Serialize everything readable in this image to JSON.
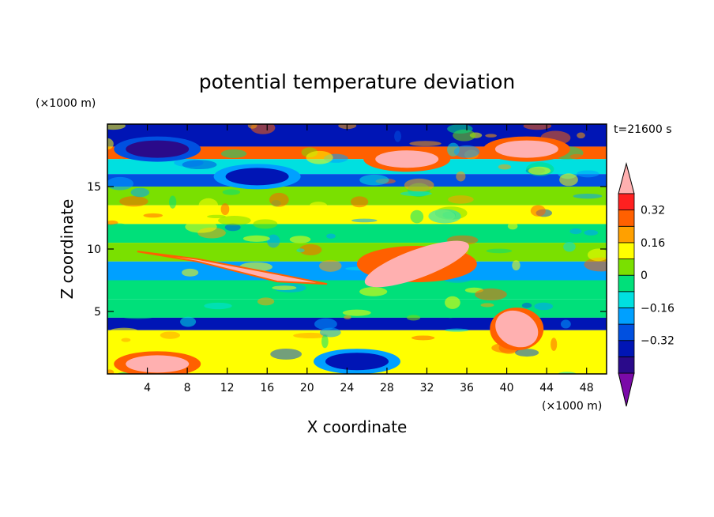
{
  "chart_data": {
    "type": "heatmap",
    "title": "potential temperature deviation",
    "xlabel": "X coordinate",
    "ylabel": "Z coordinate",
    "x_unit": "(×1000 m)",
    "y_unit": "(×1000 m)",
    "time_label": "t=21600 s",
    "xlim": [
      0,
      50
    ],
    "ylim": [
      0,
      20
    ],
    "x_ticks": [
      4,
      8,
      12,
      16,
      20,
      24,
      28,
      32,
      36,
      40,
      44,
      48
    ],
    "y_ticks": [
      5,
      10,
      15
    ],
    "colorbar": {
      "levels": [
        -0.48,
        -0.4,
        -0.32,
        -0.24,
        -0.16,
        -0.08,
        0,
        0.08,
        0.16,
        0.24,
        0.32,
        0.4
      ],
      "colors": [
        "#7a0aa8",
        "#2a0a8a",
        "#0015b5",
        "#0050e0",
        "#00a0ff",
        "#00e0e0",
        "#00e07a",
        "#7ae000",
        "#ffff00",
        "#ffa000",
        "#ff6000",
        "#ff2020",
        "#ffb0b0"
      ],
      "tick_labels": [
        "0.32",
        "0.16",
        "0",
        "−0.16",
        "−0.32"
      ],
      "tick_values": [
        0.32,
        0.16,
        0,
        -0.16,
        -0.32
      ],
      "extend": "both"
    },
    "layers": [
      {
        "z": [
          18.2,
          20
        ],
        "value": -0.4
      },
      {
        "z": [
          17.2,
          18.2
        ],
        "value": 0.24
      },
      {
        "z": [
          16.0,
          17.2
        ],
        "value": -0.16
      },
      {
        "z": [
          15.0,
          16.0
        ],
        "value": -0.32
      },
      {
        "z": [
          13.5,
          15.0
        ],
        "value": 0.04
      },
      {
        "z": [
          12.0,
          13.5
        ],
        "value": 0.08
      },
      {
        "z": [
          10.5,
          12.0
        ],
        "value": -0.04
      },
      {
        "z": [
          9.0,
          10.5
        ],
        "value": 0.0
      },
      {
        "z": [
          7.5,
          9.0
        ],
        "value": -0.24
      },
      {
        "z": [
          6.0,
          7.5
        ],
        "value": -0.08
      },
      {
        "z": [
          4.5,
          6.0
        ],
        "value": -0.06
      },
      {
        "z": [
          3.5,
          4.5
        ],
        "value": -0.36
      },
      {
        "z": [
          0,
          3.5
        ],
        "value": 0.1
      }
    ],
    "features": [
      {
        "x": 8,
        "z": 8.6,
        "value": 0.45,
        "kind": "streak"
      },
      {
        "x": 31,
        "z": 8.8,
        "value": 0.45,
        "kind": "plume"
      },
      {
        "x": 41,
        "z": 3.6,
        "value": 0.45,
        "kind": "plume"
      },
      {
        "x": 5,
        "z": 18.0,
        "value": -0.45,
        "kind": "blob"
      },
      {
        "x": 42,
        "z": 18.0,
        "value": 0.45,
        "kind": "blob"
      },
      {
        "x": 30,
        "z": 17.2,
        "value": 0.45,
        "kind": "blob"
      },
      {
        "x": 15,
        "z": 15.8,
        "value": -0.4,
        "kind": "blob"
      },
      {
        "x": 5,
        "z": 0.8,
        "value": 0.4,
        "kind": "blob"
      },
      {
        "x": 25,
        "z": 1.0,
        "value": -0.4,
        "kind": "blob"
      }
    ]
  }
}
